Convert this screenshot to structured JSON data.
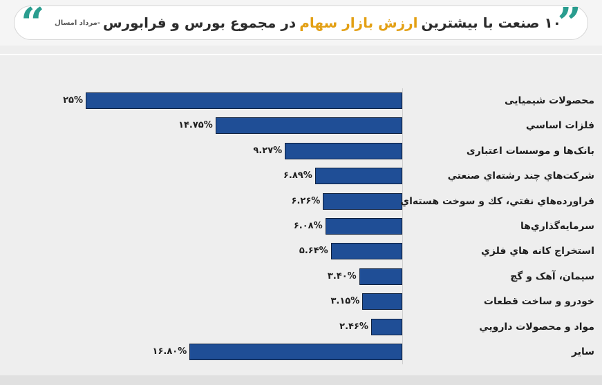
{
  "header": {
    "title_part1": "۱۰ صنعت با بیشترین",
    "title_highlight": "ارزش بازار سهام",
    "title_part2": "در مجموع بورس و فرابورس",
    "title_note": "-مرداد امسال",
    "quote_left": "“",
    "quote_right": "”"
  },
  "colors": {
    "bar": "#1f4e96",
    "accent": "#2a9d8f",
    "highlight": "#e3a014"
  },
  "chart_data": {
    "type": "bar",
    "orientation": "horizontal",
    "categories": [
      "محصولات شیمیایی",
      "فلزات اساسي",
      "بانک‌ها و موسسات اعتباری",
      "شرکت‌هاي چند رشته‌اي صنعتي",
      "فراورده‌هاي نفتي، کك و سوخت هسته‌اي",
      "سرمایه‌گذاري‌ها",
      "استخراج کانه هاي فلزي",
      "سیمان، آهک و گچ",
      "خودرو و ساخت قطعات",
      "مواد و محصولات دارويي",
      "ساير"
    ],
    "values": [
      25,
      14.75,
      9.27,
      6.89,
      6.26,
      6.08,
      5.64,
      3.4,
      3.15,
      2.46,
      16.8
    ],
    "value_labels": [
      "۲۵%",
      "۱۴.۷۵%",
      "۹.۲۷%",
      "۶.۸۹%",
      "۶.۲۶%",
      "۶.۰۸%",
      "۵.۶۴%",
      "۳.۴۰%",
      "۳.۱۵%",
      "۲.۴۶%",
      "۱۶.۸۰%"
    ],
    "xlim": [
      0,
      25
    ],
    "grid": false,
    "legend": "none"
  }
}
